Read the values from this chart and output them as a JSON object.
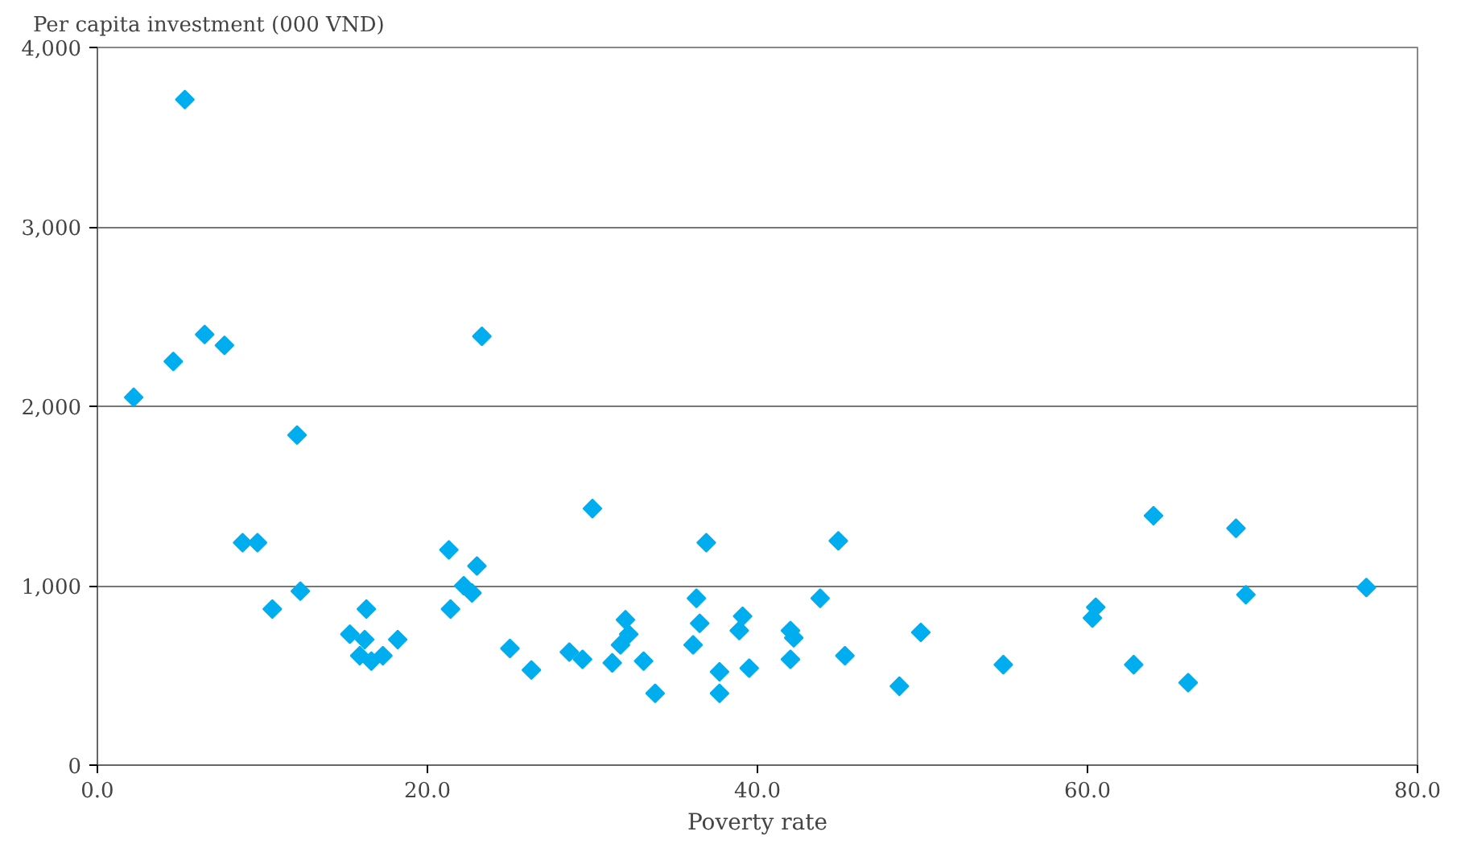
{
  "chart_data": {
    "type": "scatter",
    "xlabel": "Poverty rate",
    "ylabel": "Per capita investment (000 VND)",
    "marker": "diamond",
    "grid": "y",
    "xlim": [
      0,
      80
    ],
    "xticks": [
      {
        "value": 0,
        "label": "0.0"
      },
      {
        "value": 20,
        "label": "20.0"
      },
      {
        "value": 40,
        "label": "40.0"
      },
      {
        "value": 60,
        "label": "60.0"
      },
      {
        "value": 80,
        "label": "80.0"
      }
    ],
    "ylim": [
      0,
      4000
    ],
    "yticks": [
      {
        "value": 0,
        "label": "0"
      },
      {
        "value": 1000,
        "label": "1,000"
      },
      {
        "value": 2000,
        "label": "2,000"
      },
      {
        "value": 3000,
        "label": "3,000"
      },
      {
        "value": 4000,
        "label": "4,000"
      }
    ],
    "series": [
      {
        "color": "#00aeef",
        "x": [
          2.2,
          5.3,
          4.6,
          6.5,
          7.7,
          8.8,
          9.7,
          10.6,
          12.1,
          12.3,
          15.3,
          15.9,
          16.2,
          16.3,
          16.6,
          17.3,
          18.2,
          21.3,
          21.4,
          22.2,
          22.7,
          23.0,
          23.3,
          25.0,
          26.3,
          28.6,
          29.4,
          30.0,
          31.2,
          31.7,
          32.0,
          32.2,
          33.1,
          33.8,
          36.1,
          36.3,
          36.5,
          36.9,
          37.7,
          37.7,
          38.9,
          39.1,
          39.5,
          42.0,
          42.0,
          42.2,
          43.8,
          44.9,
          45.3,
          48.6,
          49.9,
          54.9,
          60.3,
          60.5,
          62.8,
          64.0,
          66.1,
          69.0,
          69.6,
          76.9
        ],
        "values": [
          2050,
          3710,
          2250,
          2400,
          2340,
          1240,
          1240,
          870,
          1840,
          970,
          730,
          610,
          700,
          870,
          580,
          610,
          700,
          1200,
          870,
          1000,
          960,
          1110,
          2390,
          650,
          530,
          630,
          590,
          1430,
          570,
          670,
          810,
          730,
          580,
          400,
          670,
          930,
          790,
          1240,
          520,
          400,
          750,
          830,
          540,
          750,
          590,
          710,
          930,
          1250,
          610,
          440,
          740,
          560,
          820,
          880,
          560,
          1390,
          460,
          1320,
          950,
          990
        ]
      }
    ]
  }
}
